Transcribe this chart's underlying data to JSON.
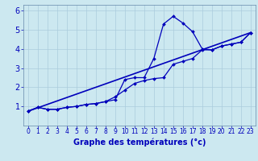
{
  "title": "Graphe des températures (°c)",
  "background_color": "#cce8f0",
  "plot_bg_color": "#cce8f0",
  "line_color": "#0000bb",
  "grid_color": "#aaccdd",
  "spine_color": "#6688aa",
  "xlim": [
    -0.5,
    23.5
  ],
  "ylim": [
    0,
    6.3
  ],
  "xticks": [
    0,
    1,
    2,
    3,
    4,
    5,
    6,
    7,
    8,
    9,
    10,
    11,
    12,
    13,
    14,
    15,
    16,
    17,
    18,
    19,
    20,
    21,
    22,
    23
  ],
  "yticks": [
    1,
    2,
    3,
    4,
    5,
    6
  ],
  "ytick_labels": [
    "1",
    "2",
    "3",
    "4",
    "5",
    "6"
  ],
  "line1_x": [
    0,
    1,
    2,
    3,
    4,
    5,
    6,
    7,
    8,
    9,
    10,
    11,
    12,
    13,
    14,
    15,
    16,
    17,
    18,
    19,
    20,
    21,
    22,
    23
  ],
  "line1_y": [
    0.75,
    0.95,
    0.85,
    0.85,
    0.95,
    1.0,
    1.1,
    1.15,
    1.25,
    1.35,
    2.4,
    2.5,
    2.5,
    3.5,
    5.3,
    5.7,
    5.35,
    4.9,
    4.0,
    3.95,
    4.15,
    4.25,
    4.35,
    4.85
  ],
  "line2_x": [
    0,
    1,
    2,
    3,
    4,
    5,
    6,
    7,
    8,
    9,
    10,
    11,
    12,
    13,
    14,
    15,
    16,
    17,
    18,
    19,
    20,
    21,
    22,
    23
  ],
  "line2_y": [
    0.75,
    0.95,
    0.85,
    0.85,
    0.95,
    1.0,
    1.1,
    1.15,
    1.25,
    1.5,
    1.85,
    2.2,
    2.35,
    2.45,
    2.5,
    3.2,
    3.35,
    3.5,
    3.95,
    3.95,
    4.15,
    4.25,
    4.35,
    4.85
  ],
  "line3_x": [
    0,
    23
  ],
  "line3_y": [
    0.75,
    4.85
  ],
  "marker": "D",
  "markersize": 2.0,
  "linewidth": 0.9,
  "xlabel_fontsize": 7,
  "tick_fontsize": 5.5,
  "ytick_fontsize": 7
}
